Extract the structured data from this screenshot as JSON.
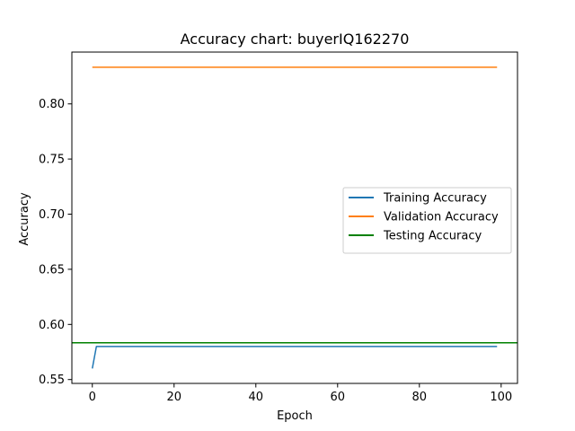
{
  "chart_data": {
    "type": "line",
    "title": "Accuracy chart: buyerIQ162270",
    "xlabel": "Epoch",
    "ylabel": "Accuracy",
    "xlim": [
      -5,
      104
    ],
    "ylim": [
      0.5465,
      0.847
    ],
    "xticks": [
      0,
      20,
      40,
      60,
      80,
      100
    ],
    "xtick_labels": [
      "0",
      "20",
      "40",
      "60",
      "80",
      "100"
    ],
    "yticks": [
      0.55,
      0.6,
      0.65,
      0.7,
      0.75,
      0.8
    ],
    "ytick_labels": [
      "0.55",
      "0.60",
      "0.65",
      "0.70",
      "0.75",
      "0.80"
    ],
    "grid": false,
    "legend_position": "center-right",
    "series": [
      {
        "name": "Training Accuracy",
        "color": "#1f77b4",
        "x": [
          0,
          1,
          99
        ],
        "y": [
          0.56,
          0.58,
          0.58
        ]
      },
      {
        "name": "Validation Accuracy",
        "color": "#ff7f0e",
        "x": [
          0,
          99
        ],
        "y": [
          0.8333,
          0.8333
        ]
      },
      {
        "name": "Testing Accuracy",
        "color": "#008000",
        "kind": "hline",
        "y": 0.5833
      }
    ]
  }
}
